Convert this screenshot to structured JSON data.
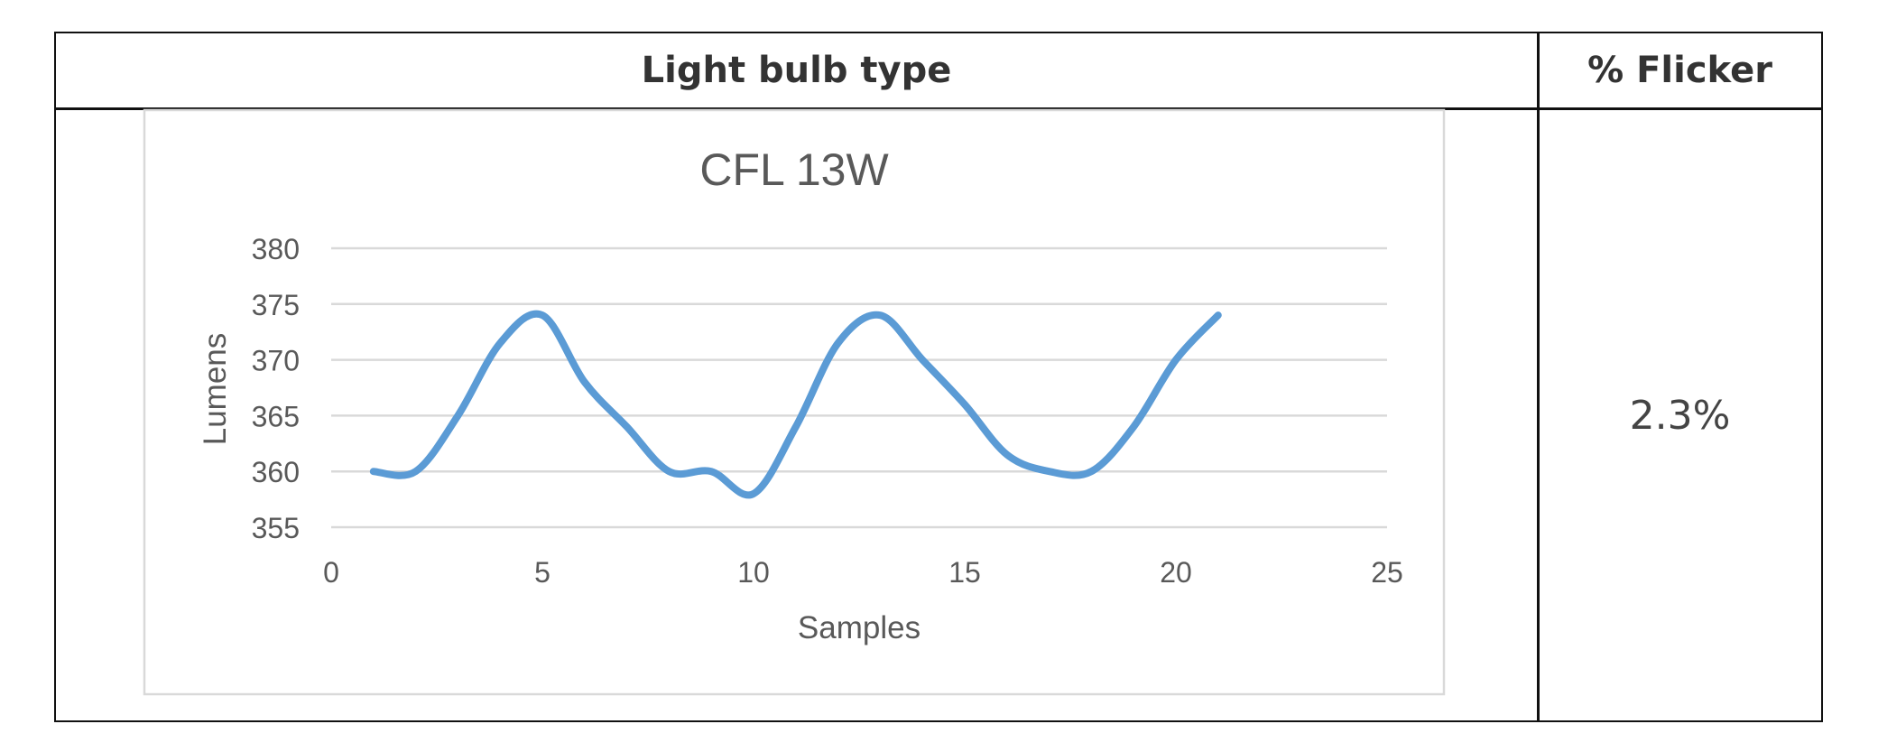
{
  "table": {
    "header_bulb": "Light bulb type",
    "header_flicker": "% Flicker",
    "flicker_value": "2.3%"
  },
  "chart_data": {
    "type": "line",
    "title": "CFL 13W",
    "xlabel": "Samples",
    "ylabel": "Lumens",
    "xlim": [
      0,
      25
    ],
    "ylim": [
      355,
      380
    ],
    "xticks": [
      0,
      5,
      10,
      15,
      20,
      25
    ],
    "yticks": [
      355,
      360,
      365,
      370,
      375,
      380
    ],
    "grid": true,
    "legend": false,
    "series": [
      {
        "color": "#5b9bd5",
        "x": [
          1,
          2,
          3,
          4,
          5,
          6,
          7,
          8,
          9,
          10,
          11,
          12,
          13,
          14,
          15,
          16,
          17,
          18,
          19,
          20,
          21
        ],
        "values": [
          360,
          360,
          365,
          371.5,
          374,
          368,
          364,
          360,
          360,
          358,
          364,
          371.5,
          374,
          370,
          366,
          361.5,
          360,
          360,
          364,
          370,
          374
        ]
      }
    ]
  }
}
